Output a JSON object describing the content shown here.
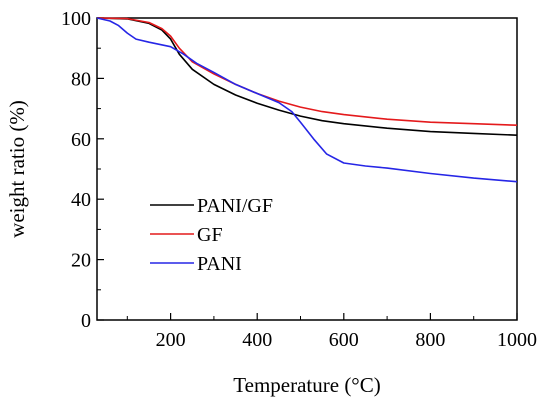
{
  "chart_data": {
    "type": "line",
    "title": "",
    "xlabel": "Temperature (°C)",
    "ylabel": "weight ratio (%)",
    "xlim": [
      30,
      1000
    ],
    "ylim": [
      0,
      100
    ],
    "xticks": [
      200,
      400,
      600,
      800,
      1000
    ],
    "yticks": [
      0,
      20,
      40,
      60,
      80,
      100
    ],
    "grid": false,
    "legend": "center-left",
    "series": [
      {
        "name": "PANI/GF",
        "color": "#000000",
        "points": [
          [
            30,
            100
          ],
          [
            100,
            99.7
          ],
          [
            150,
            98.2
          ],
          [
            180,
            96
          ],
          [
            200,
            93
          ],
          [
            220,
            88
          ],
          [
            250,
            83
          ],
          [
            300,
            78
          ],
          [
            350,
            74.5
          ],
          [
            400,
            71.8
          ],
          [
            450,
            69.5
          ],
          [
            500,
            67.5
          ],
          [
            550,
            66
          ],
          [
            600,
            65
          ],
          [
            700,
            63.5
          ],
          [
            800,
            62.4
          ],
          [
            900,
            61.8
          ],
          [
            1000,
            61.2
          ]
        ]
      },
      {
        "name": "GF",
        "color": "#e41a1c",
        "points": [
          [
            30,
            100
          ],
          [
            100,
            99.8
          ],
          [
            150,
            98.5
          ],
          [
            180,
            96.5
          ],
          [
            200,
            94
          ],
          [
            220,
            90
          ],
          [
            250,
            85.5
          ],
          [
            300,
            81.5
          ],
          [
            350,
            78
          ],
          [
            400,
            75
          ],
          [
            450,
            72.5
          ],
          [
            500,
            70.5
          ],
          [
            550,
            69
          ],
          [
            600,
            68
          ],
          [
            700,
            66.5
          ],
          [
            800,
            65.5
          ],
          [
            900,
            65
          ],
          [
            1000,
            64.5
          ]
        ]
      },
      {
        "name": "PANI",
        "color": "#2626e6",
        "points": [
          [
            30,
            100
          ],
          [
            60,
            99
          ],
          [
            80,
            97.5
          ],
          [
            100,
            95
          ],
          [
            120,
            93
          ],
          [
            150,
            92
          ],
          [
            200,
            90.5
          ],
          [
            230,
            88
          ],
          [
            260,
            85
          ],
          [
            300,
            82
          ],
          [
            350,
            78
          ],
          [
            400,
            75
          ],
          [
            450,
            72
          ],
          [
            480,
            69
          ],
          [
            500,
            65.5
          ],
          [
            530,
            60
          ],
          [
            560,
            55
          ],
          [
            600,
            52
          ],
          [
            650,
            51
          ],
          [
            700,
            50.3
          ],
          [
            800,
            48.5
          ],
          [
            900,
            47
          ],
          [
            1000,
            45.8
          ]
        ]
      }
    ]
  }
}
